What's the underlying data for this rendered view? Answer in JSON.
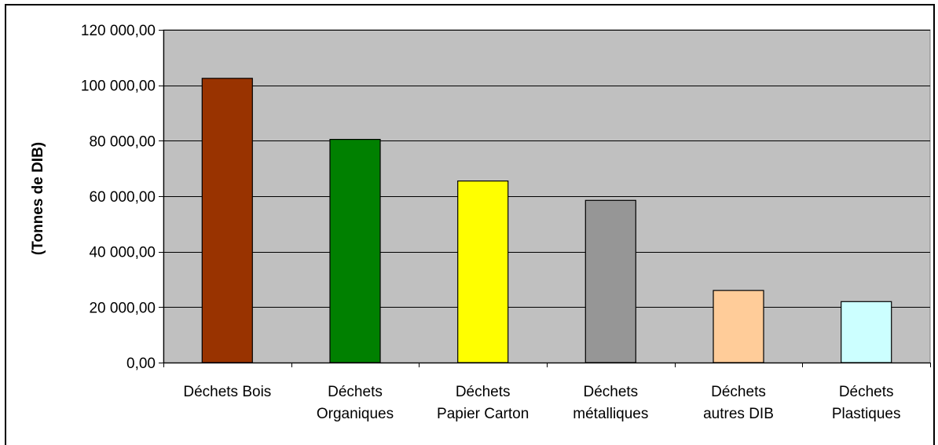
{
  "chart_data": {
    "type": "bar",
    "title": "",
    "xlabel": "",
    "ylabel": "(Tonnes de DIB)",
    "categories": [
      [
        "Déchets Bois"
      ],
      [
        "Déchets",
        "Organiques"
      ],
      [
        "Déchets",
        "Papier Carton"
      ],
      [
        "Déchets",
        "métalliques"
      ],
      [
        "Déchets",
        "autres DIB"
      ],
      [
        "Déchets",
        "Plastiques"
      ]
    ],
    "values": [
      102500,
      80500,
      65500,
      58500,
      26000,
      22000
    ],
    "bar_colors": [
      "#993300",
      "#008000",
      "#ffff00",
      "#969696",
      "#ffcc99",
      "#ccffff"
    ],
    "ylim": [
      0,
      120000
    ],
    "y_ticks": [
      0,
      20000,
      40000,
      60000,
      80000,
      100000,
      120000
    ],
    "y_tick_labels": [
      "0,00",
      "20 000,00",
      "40 000,00",
      "60 000,00",
      "80 000,00",
      "100 000,00",
      "120 000,00"
    ],
    "plot_background": "#c0c0c0",
    "grid": true,
    "legend": "none"
  }
}
